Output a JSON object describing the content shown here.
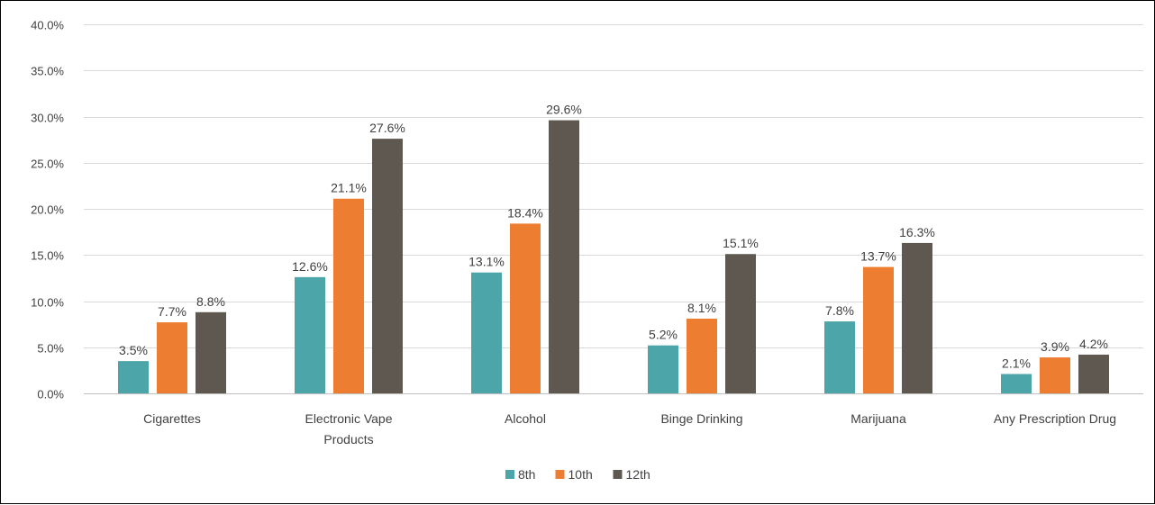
{
  "chart_data": {
    "type": "bar",
    "categories": [
      "Cigarettes",
      "Electronic Vape Products",
      "Alcohol",
      "Binge Drinking",
      "Marijuana",
      "Any Prescription Drug"
    ],
    "category_lines": [
      [
        "Cigarettes"
      ],
      [
        "Electronic Vape",
        "Products"
      ],
      [
        "Alcohol"
      ],
      [
        "Binge Drinking"
      ],
      [
        "Marijuana"
      ],
      [
        "Any Prescription Drug"
      ]
    ],
    "series": [
      {
        "name": "8th",
        "color": "#4BA5A9",
        "values": [
          3.5,
          12.6,
          13.1,
          5.2,
          7.8,
          2.1
        ],
        "labels": [
          "3.5%",
          "12.6%",
          "13.1%",
          "5.2%",
          "7.8%",
          "2.1%"
        ]
      },
      {
        "name": "10th",
        "color": "#ED7D31",
        "values": [
          7.7,
          21.1,
          18.4,
          8.1,
          13.7,
          3.9
        ],
        "labels": [
          "7.7%",
          "21.1%",
          "18.4%",
          "8.1%",
          "13.7%",
          "3.9%"
        ]
      },
      {
        "name": "12th",
        "color": "#5E5850",
        "values": [
          8.8,
          27.6,
          29.6,
          15.1,
          16.3,
          4.2
        ],
        "labels": [
          "8.8%",
          "27.6%",
          "29.6%",
          "15.1%",
          "16.3%",
          "4.2%"
        ]
      }
    ],
    "yticks": [
      "0.0%",
      "5.0%",
      "10.0%",
      "15.0%",
      "20.0%",
      "25.0%",
      "30.0%",
      "35.0%",
      "40.0%"
    ],
    "ylim": [
      0,
      40
    ],
    "grid": true,
    "legend": "bottom-center",
    "title": "",
    "xlabel": "",
    "ylabel": ""
  }
}
